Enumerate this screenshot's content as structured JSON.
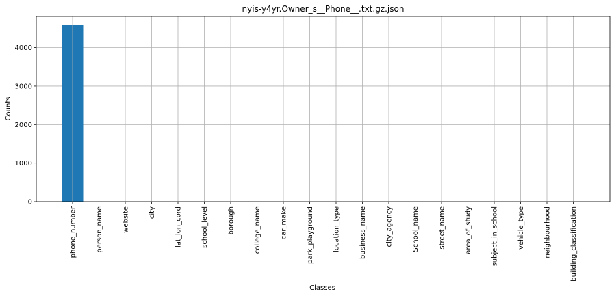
{
  "chart_data": {
    "type": "bar",
    "title": "nyis-y4yr.Owner_s__Phone__.txt.gz.json",
    "xlabel": "Classes",
    "ylabel": "Counts",
    "categories": [
      "phone_number",
      "person_name",
      "website",
      "city",
      "lat_lon_cord",
      "school_level",
      "borough",
      "college_name",
      "car_make",
      "park_playground",
      "location_type",
      "business_name",
      "city_agency",
      "School_name",
      "street_name",
      "area_of_study",
      "subject_in_school",
      "vehicle_type",
      "neighbourhood",
      "building_classification"
    ],
    "values": [
      4580,
      0,
      0,
      0,
      0,
      0,
      0,
      0,
      0,
      0,
      0,
      0,
      0,
      0,
      0,
      0,
      0,
      0,
      0,
      0
    ],
    "ylim": [
      0,
      4809
    ],
    "yticks": [
      0,
      1000,
      2000,
      3000,
      4000
    ],
    "grid": true,
    "bar_color": "#1f77b4",
    "grid_color": "#b0b0b0"
  }
}
